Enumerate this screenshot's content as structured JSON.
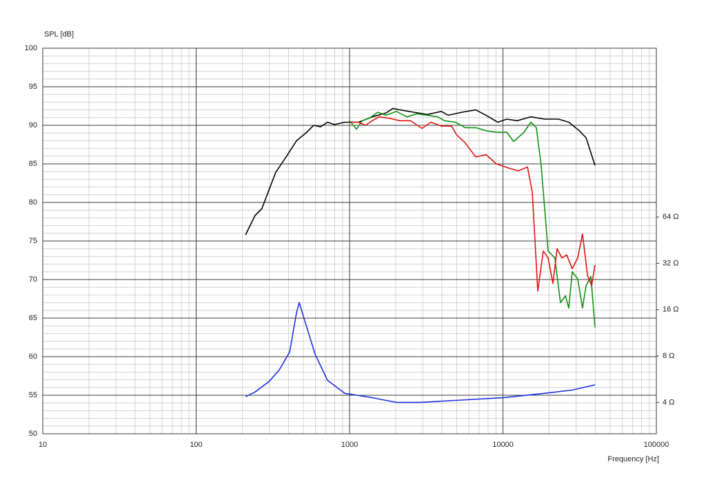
{
  "chart_data": {
    "type": "line",
    "y_label": "SPL [dB]",
    "x_label": "Frequency [Hz]",
    "xscale": "log",
    "xlim": [
      10,
      100000
    ],
    "xticks": [
      10,
      100,
      1000,
      10000,
      100000
    ],
    "x_minor_ticks": [
      20,
      30,
      40,
      50,
      60,
      70,
      80,
      90,
      200,
      300,
      400,
      500,
      600,
      700,
      800,
      900,
      2000,
      3000,
      4000,
      5000,
      6000,
      7000,
      8000,
      9000,
      20000,
      30000,
      40000,
      50000,
      60000,
      70000,
      80000,
      90000
    ],
    "ylim": [
      50,
      100
    ],
    "yticks": [
      50,
      55,
      60,
      65,
      70,
      75,
      80,
      85,
      90,
      95,
      100
    ],
    "y_minor_ticks": [
      51,
      52,
      53,
      54,
      56,
      57,
      58,
      59,
      61,
      62,
      63,
      64,
      66,
      67,
      68,
      69,
      71,
      72,
      73,
      74,
      76,
      77,
      78,
      79,
      81,
      82,
      83,
      84,
      86,
      87,
      88,
      89,
      91,
      92,
      93,
      94,
      96,
      97,
      98,
      99
    ],
    "y2scale": "log",
    "y2lim": [
      2.5,
      800
    ],
    "y2ticks": [
      {
        "value": 4,
        "label": "4 Ω"
      },
      {
        "value": 8,
        "label": "8 Ω"
      },
      {
        "value": 16,
        "label": "16 Ω"
      },
      {
        "value": 32,
        "label": "32 Ω"
      },
      {
        "value": 64,
        "label": "64 Ω"
      }
    ],
    "grid": true,
    "series": [
      {
        "color": "#000000",
        "x": [
          210,
          242,
          268,
          284,
          330,
          386,
          451,
          526,
          583,
          647,
          718,
          796,
          930,
          1144,
          1406,
          1729,
          1919,
          2128,
          2618,
          3221,
          3963,
          4395,
          5407,
          6645,
          7762,
          9250,
          10590,
          12360,
          15200,
          18700,
          23000,
          26860,
          31400,
          34800,
          39800
        ],
        "values": [
          75.8,
          78.3,
          79.2,
          80.5,
          83.9,
          85.9,
          88.0,
          89.1,
          90.0,
          89.8,
          90.4,
          90.1,
          90.4,
          90.4,
          91.1,
          91.6,
          92.2,
          92.0,
          91.7,
          91.4,
          91.8,
          91.3,
          91.7,
          92.0,
          91.3,
          90.4,
          90.8,
          90.6,
          91.1,
          90.8,
          90.8,
          90.4,
          89.3,
          88.4,
          84.8
        ]
      },
      {
        "color": "#109010",
        "x": [
          1000,
          1110,
          1210,
          1340,
          1528,
          1729,
          2020,
          2360,
          2757,
          3221,
          3760,
          4165,
          4880,
          5690,
          6645,
          7762,
          9060,
          10590,
          11750,
          13710,
          15200,
          16510,
          17750,
          19700,
          21800,
          23700,
          25550,
          26860,
          28300,
          30700,
          33000,
          34800,
          37400,
          39800
        ],
        "values": [
          90.6,
          89.5,
          90.6,
          90.9,
          91.7,
          91.3,
          91.8,
          91.1,
          91.5,
          91.3,
          91.1,
          90.6,
          90.4,
          89.7,
          89.7,
          89.3,
          89.1,
          89.1,
          87.9,
          89.1,
          90.4,
          89.7,
          84.8,
          73.7,
          72.8,
          67.0,
          67.9,
          66.3,
          71.0,
          70.1,
          66.3,
          69.2,
          70.4,
          63.8
        ]
      },
      {
        "color": "#e01010",
        "x": [
          1000,
          1144,
          1270,
          1406,
          1560,
          1822,
          2128,
          2500,
          2965,
          3390,
          3963,
          4625,
          4975,
          5690,
          6645,
          7762,
          9060,
          11140,
          12620,
          14450,
          15540,
          16870,
          18320,
          19700,
          21180,
          22530,
          24230,
          26050,
          28300,
          30700,
          33000,
          35600,
          37850,
          39800
        ],
        "values": [
          90.4,
          90.4,
          90.0,
          90.6,
          91.1,
          90.9,
          90.6,
          90.6,
          89.6,
          90.4,
          89.9,
          89.9,
          88.8,
          87.7,
          85.9,
          86.2,
          85.0,
          84.4,
          84.1,
          84.6,
          81.3,
          68.5,
          73.7,
          72.8,
          69.5,
          74.0,
          72.8,
          73.2,
          71.4,
          72.8,
          75.9,
          70.5,
          69.2,
          71.9
        ]
      },
      {
        "color": "#1a2ee0",
        "axis": "y2",
        "x": [
          210,
          242,
          298,
          348,
          407,
          451,
          470,
          500,
          596,
          718,
          930,
          1406,
          2020,
          2905,
          4880,
          10050,
          18700,
          28300,
          39800
        ],
        "values": [
          4.35,
          4.67,
          5.45,
          6.49,
          8.49,
          15.3,
          17.8,
          14.5,
          8.23,
          5.56,
          4.58,
          4.29,
          4.0,
          4.0,
          4.12,
          4.29,
          4.58,
          4.81,
          5.2
        ]
      }
    ]
  }
}
